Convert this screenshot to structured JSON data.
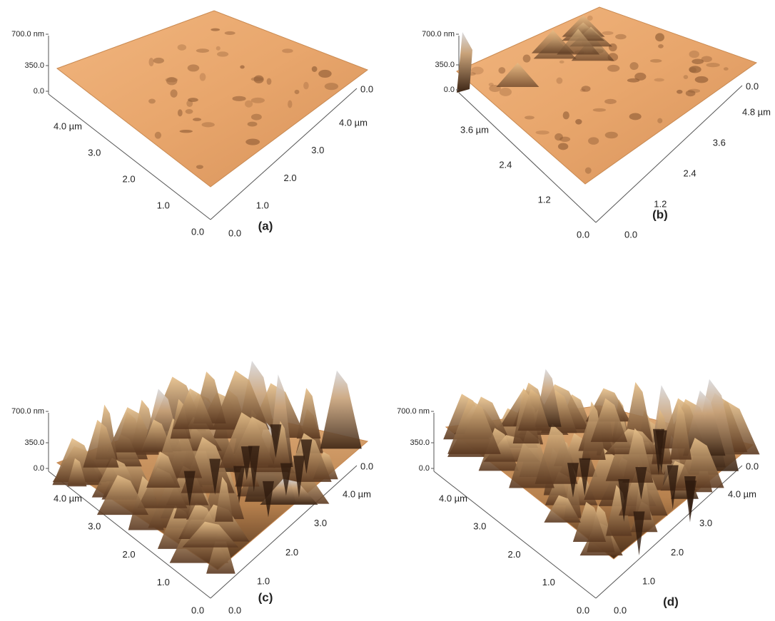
{
  "panels": [
    {
      "label": "(a)",
      "z_axis": [
        "700.0 nm",
        "350.0",
        "0.0"
      ],
      "left_axis": [
        "4.0 µm",
        "3.0",
        "2.0",
        "1.0",
        "0.0"
      ],
      "right_axis": [
        "0.0",
        "4.0 µm",
        "3.0",
        "2.0",
        "1.0",
        "0.0"
      ]
    },
    {
      "label": "(b)",
      "z_axis": [
        "700.0 nm",
        "350.0",
        "0.0"
      ],
      "left_axis": [
        "3.6 µm",
        "2.4",
        "1.2",
        "0.0"
      ],
      "right_axis": [
        "0.0",
        "4.8 µm",
        "3.6",
        "2.4",
        "1.2",
        "0.0"
      ]
    },
    {
      "label": "(c)",
      "z_axis": [
        "700.0 nm",
        "350.0",
        "0.0"
      ],
      "left_axis": [
        "4.0 µm",
        "3.0",
        "2.0",
        "1.0",
        "0.0"
      ],
      "right_axis": [
        "0.0",
        "4.0 µm",
        "3.0",
        "2.0",
        "1.0",
        "0.0"
      ]
    },
    {
      "label": "(d)",
      "z_axis": [
        "700.0 nm",
        "350.0",
        "0.0"
      ],
      "left_axis": [
        "4.0 µm",
        "3.0",
        "2.0",
        "1.0",
        "0.0"
      ],
      "right_axis": [
        "0.0",
        "4.0 µm",
        "3.0",
        "2.0",
        "1.0",
        "0.0"
      ]
    }
  ]
}
